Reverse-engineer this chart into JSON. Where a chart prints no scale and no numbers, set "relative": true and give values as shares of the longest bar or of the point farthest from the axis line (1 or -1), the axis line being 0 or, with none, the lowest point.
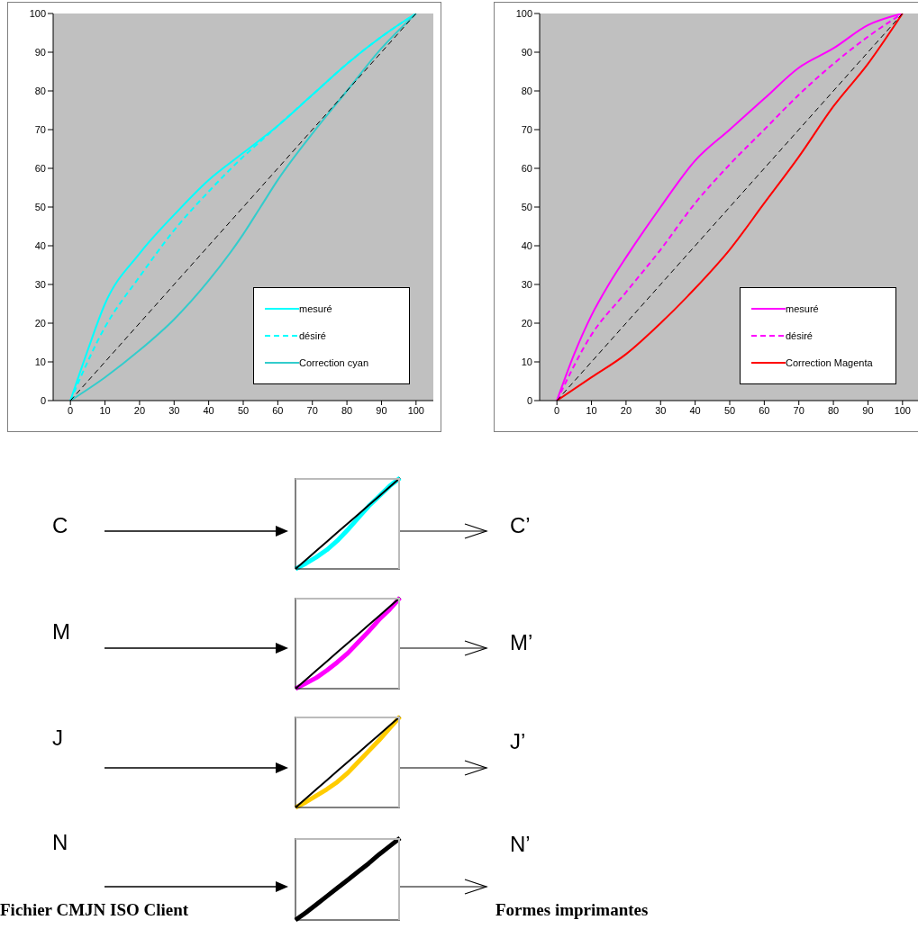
{
  "chart_data": [
    {
      "type": "line",
      "xlim": [
        -5,
        105
      ],
      "ylim": [
        0,
        100
      ],
      "xticks": [
        0,
        10,
        20,
        30,
        40,
        50,
        60,
        70,
        80,
        90,
        100
      ],
      "yticks": [
        0,
        10,
        20,
        30,
        40,
        50,
        60,
        70,
        80,
        90,
        100
      ],
      "legend": "bottom right",
      "series": [
        {
          "name": "mesuré",
          "color": "#00ffff",
          "x": [
            0,
            5,
            10,
            20,
            30,
            40,
            50,
            60,
            70,
            80,
            90,
            100
          ],
          "values": [
            0,
            13,
            25,
            38,
            48,
            57,
            64,
            71,
            79,
            87,
            94,
            100
          ]
        },
        {
          "name": "désiré",
          "color": "#00ffff",
          "line_style": "dashed",
          "x": [
            0,
            10,
            20,
            30,
            40,
            50,
            55,
            60,
            70,
            80,
            90,
            100
          ],
          "values": [
            0,
            19,
            32,
            44,
            54,
            63,
            67,
            71,
            79,
            87,
            94,
            100
          ]
        },
        {
          "name": "Correction cyan",
          "color": "#33cccc",
          "x": [
            0,
            10,
            20,
            30,
            40,
            50,
            55,
            60,
            70,
            80,
            90,
            100
          ],
          "values": [
            0,
            6,
            13,
            21,
            31,
            43,
            50,
            57,
            69,
            80,
            91,
            100
          ]
        },
        {
          "color": "#000000",
          "line_style": "dashed",
          "x": [
            0,
            100
          ],
          "values": [
            0,
            100
          ]
        }
      ]
    },
    {
      "type": "line",
      "xlim": [
        -5,
        105
      ],
      "ylim": [
        0,
        100
      ],
      "xticks": [
        0,
        10,
        20,
        30,
        40,
        50,
        60,
        70,
        80,
        90,
        100
      ],
      "yticks": [
        0,
        10,
        20,
        30,
        40,
        50,
        60,
        70,
        80,
        90,
        100
      ],
      "legend": "bottom right",
      "series": [
        {
          "name": "mesuré",
          "color": "#ff00ff",
          "x": [
            0,
            5,
            10,
            15,
            20,
            30,
            40,
            50,
            60,
            70,
            80,
            90,
            100
          ],
          "values": [
            0,
            12,
            22,
            30,
            37,
            50,
            62,
            70,
            78,
            86,
            91,
            97,
            100
          ]
        },
        {
          "name": "désiré",
          "color": "#ff00ff",
          "line_style": "dashed",
          "x": [
            0,
            10,
            20,
            30,
            40,
            50,
            60,
            70,
            80,
            90,
            100
          ],
          "values": [
            0,
            17,
            28,
            39,
            51,
            61,
            70,
            79,
            87,
            94,
            100
          ]
        },
        {
          "name": "Correction Magenta",
          "color": "#ff0000",
          "x": [
            0,
            10,
            20,
            30,
            40,
            50,
            60,
            70,
            80,
            90,
            100
          ],
          "values": [
            0,
            6,
            12,
            20,
            29,
            39,
            51,
            63,
            76,
            87,
            100
          ]
        },
        {
          "color": "#000000",
          "line_style": "dashed",
          "x": [
            0,
            100
          ],
          "values": [
            0,
            100
          ]
        }
      ]
    },
    {
      "type": "line",
      "relative": true,
      "categories": [
        null,
        null,
        null,
        null,
        null,
        null,
        null,
        null,
        null,
        null,
        null
      ],
      "annotations": [
        "C",
        "C’"
      ],
      "series": [
        {
          "color": "#00ffff",
          "values": [
            0,
            0.06,
            0.13,
            0.21,
            0.31,
            0.43,
            0.56,
            0.69,
            0.8,
            0.91,
            1
          ]
        },
        {
          "color": "#000000",
          "values": [
            0,
            0.1,
            0.2,
            0.3,
            0.4,
            0.5,
            0.6,
            0.7,
            0.8,
            0.9,
            1
          ]
        }
      ]
    },
    {
      "type": "line",
      "relative": true,
      "categories": [
        null,
        null,
        null,
        null,
        null,
        null,
        null,
        null,
        null,
        null,
        null
      ],
      "annotations": [
        "M",
        "M’"
      ],
      "series": [
        {
          "color": "#ff00ff",
          "values": [
            0,
            0.06,
            0.12,
            0.2,
            0.29,
            0.39,
            0.51,
            0.63,
            0.76,
            0.87,
            1
          ]
        },
        {
          "color": "#000000",
          "values": [
            0,
            0.1,
            0.2,
            0.3,
            0.4,
            0.5,
            0.6,
            0.7,
            0.8,
            0.9,
            1
          ]
        }
      ]
    },
    {
      "type": "line",
      "relative": true,
      "categories": [
        null,
        null,
        null,
        null,
        null,
        null,
        null,
        null,
        null,
        null,
        null
      ],
      "annotations": [
        "J",
        "J’"
      ],
      "series": [
        {
          "color": "#ffcc00",
          "values": [
            0,
            0.06,
            0.13,
            0.2,
            0.28,
            0.38,
            0.5,
            0.62,
            0.74,
            0.87,
            1
          ]
        },
        {
          "color": "#000000",
          "values": [
            0,
            0.1,
            0.2,
            0.3,
            0.4,
            0.5,
            0.6,
            0.7,
            0.8,
            0.9,
            1
          ]
        }
      ]
    },
    {
      "type": "line",
      "relative": true,
      "categories": [
        null,
        null,
        null,
        null,
        null,
        null,
        null,
        null,
        null,
        null,
        null
      ],
      "annotations": [
        "N",
        "N’",
        "Fichier CMJN ISO Client",
        "Formes imprimantes"
      ],
      "series": [
        {
          "color": "#000000",
          "values": [
            0,
            0.09,
            0.19,
            0.29,
            0.39,
            0.49,
            0.59,
            0.69,
            0.8,
            0.9,
            1
          ]
        }
      ]
    }
  ]
}
